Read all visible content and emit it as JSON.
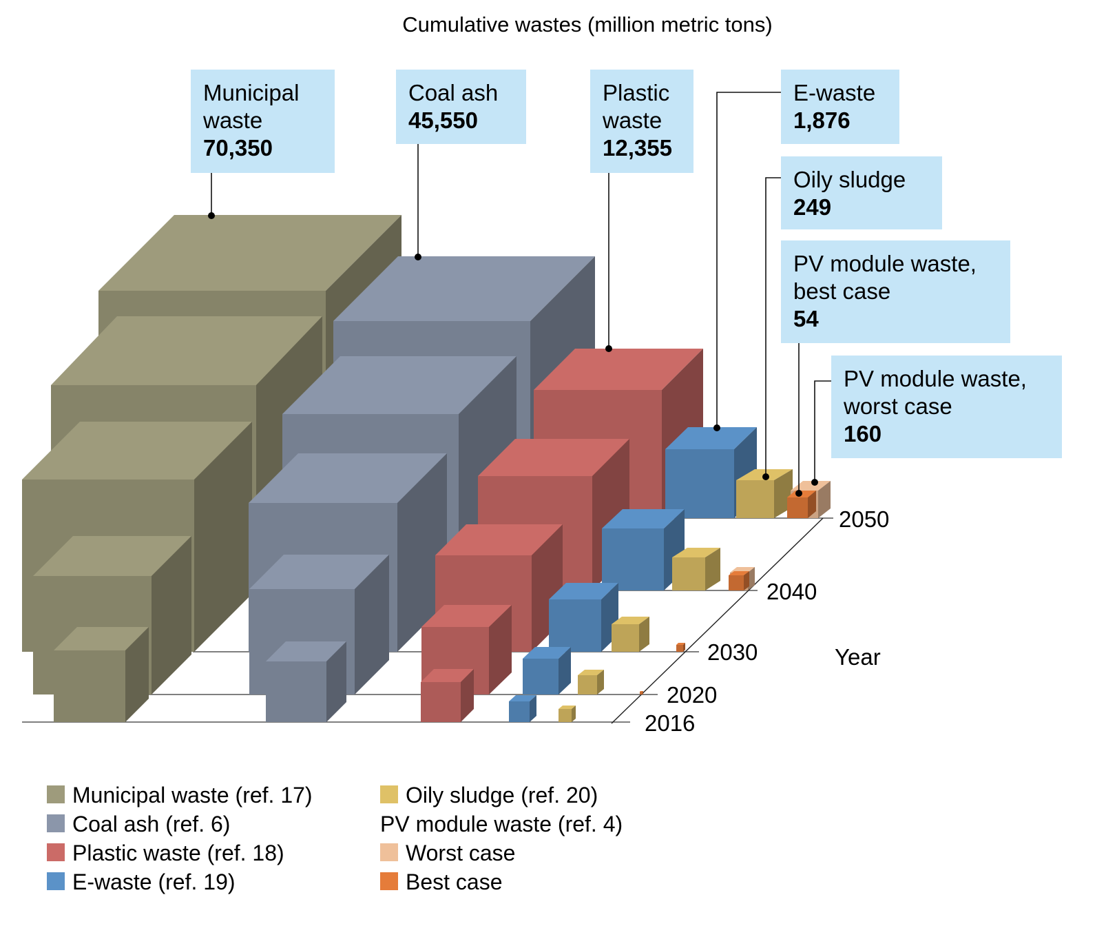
{
  "chart_data": {
    "type": "bar",
    "subtype": "3d-cube-volume",
    "title": "Cumulative wastes (million metric tons)",
    "xlabel": "",
    "ylabel": "",
    "zlabel": "Year",
    "years": [
      "2016",
      "2020",
      "2030",
      "2040",
      "2050"
    ],
    "series": [
      {
        "key": "municipal",
        "name": "Municipal waste",
        "legend": "Municipal waste (ref. 17)",
        "color": "#9e9b7c",
        "callout": [
          "Municipal",
          "waste"
        ],
        "value_2050": 70350,
        "value_label": "70,350"
      },
      {
        "key": "coal",
        "name": "Coal ash",
        "legend": "Coal ash (ref. 6)",
        "color": "#8b96aa",
        "callout": [
          "Coal ash"
        ],
        "value_2050": 45550,
        "value_label": "45,550"
      },
      {
        "key": "plastic",
        "name": "Plastic waste",
        "legend": "Plastic waste (ref. 18)",
        "color": "#cb6b67",
        "callout": [
          "Plastic",
          "waste"
        ],
        "value_2050": 12355,
        "value_label": "12,355"
      },
      {
        "key": "ewaste",
        "name": "E-waste",
        "legend": "E-waste (ref. 19)",
        "color": "#5b92c8",
        "callout": [
          "E-waste"
        ],
        "value_2050": 1876,
        "value_label": "1,876"
      },
      {
        "key": "oily",
        "name": "Oily sludge",
        "legend": "Oily sludge (ref. 20)",
        "color": "#dfc167",
        "callout": [
          "Oily sludge"
        ],
        "value_2050": 249,
        "value_label": "249"
      },
      {
        "key": "pv_best",
        "name": "PV module waste, best case",
        "legend": "Best case",
        "color": "#e57c3a",
        "callout": [
          "PV module waste,",
          "best case"
        ],
        "value_2050": 54,
        "value_label": "54"
      },
      {
        "key": "pv_worst",
        "name": "PV module waste, worst case",
        "legend": "Worst case",
        "color": "#efc09a",
        "callout": [
          "PV module waste,",
          "worst case"
        ],
        "value_2050": 160,
        "value_label": "160"
      }
    ],
    "legend": {
      "placement": "bottom-left",
      "columns": [
        [
          {
            "label": "Municipal waste (ref. 17)",
            "color": "#9e9b7c"
          },
          {
            "label": "Coal ash (ref. 6)",
            "color": "#8b96aa"
          },
          {
            "label": "Plastic waste (ref. 18)",
            "color": "#cb6b67"
          },
          {
            "label": "E-waste (ref. 19)",
            "color": "#5b92c8"
          }
        ],
        [
          {
            "label": "Oily sludge (ref. 20)",
            "color": "#dfc167"
          },
          {
            "label": "PV module waste (ref. 4)",
            "color": null
          },
          {
            "label": "Worst case",
            "color": "#efc09a"
          },
          {
            "label": "Best case",
            "color": "#e57c3a"
          }
        ]
      ]
    },
    "callout_bg": "#c5e5f7",
    "grid": false
  }
}
